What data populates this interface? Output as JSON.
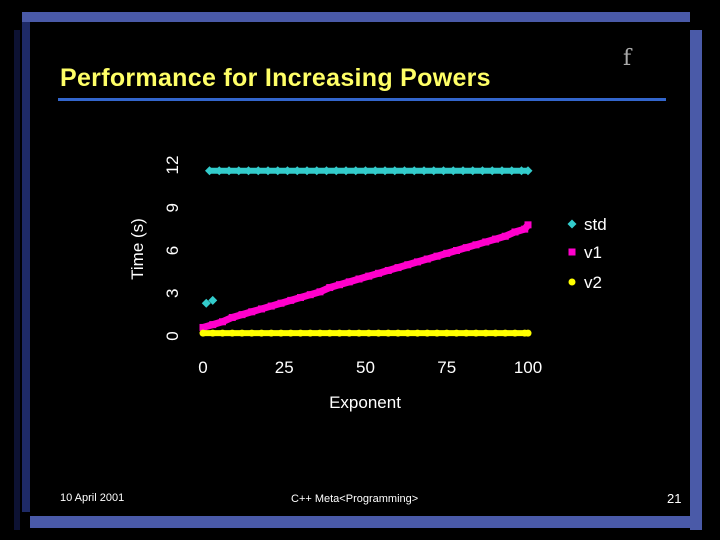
{
  "slide": {
    "title": "Performance for Increasing Powers",
    "glyph": "f",
    "footer_date": "10 April 2001",
    "footer_course": "C++ Meta<Programming>",
    "page_number": "21"
  },
  "theme": {
    "background": "#000000",
    "title_color": "#ffff66",
    "rule_color": "#3366cc",
    "frame_color": "#4a5aa8",
    "frame_shadow": "#1e2a66"
  },
  "chart_data": {
    "type": "scatter",
    "xlabel": "Exponent",
    "ylabel": "Time (s)",
    "xlim": [
      0,
      100
    ],
    "ylim": [
      0,
      12
    ],
    "xticks": [
      "0",
      "25",
      "50",
      "75",
      "100"
    ],
    "yticks": [
      "0",
      "3",
      "6",
      "9",
      "12"
    ],
    "grid": false,
    "legend_position": "right",
    "series": [
      {
        "name": "std",
        "color": "#33cccc",
        "marker": "diamond",
        "points": [
          [
            1,
            2.3
          ],
          [
            3,
            2.5
          ],
          [
            2,
            11.6
          ],
          [
            5,
            11.6
          ],
          [
            8,
            11.6
          ],
          [
            11,
            11.6
          ],
          [
            14,
            11.6
          ],
          [
            17,
            11.6
          ],
          [
            20,
            11.6
          ],
          [
            23,
            11.6
          ],
          [
            26,
            11.6
          ],
          [
            29,
            11.6
          ],
          [
            32,
            11.6
          ],
          [
            35,
            11.6
          ],
          [
            38,
            11.6
          ],
          [
            41,
            11.6
          ],
          [
            44,
            11.6
          ],
          [
            47,
            11.6
          ],
          [
            50,
            11.6
          ],
          [
            53,
            11.6
          ],
          [
            56,
            11.6
          ],
          [
            59,
            11.6
          ],
          [
            62,
            11.6
          ],
          [
            65,
            11.6
          ],
          [
            68,
            11.6
          ],
          [
            71,
            11.6
          ],
          [
            74,
            11.6
          ],
          [
            77,
            11.6
          ],
          [
            80,
            11.6
          ],
          [
            83,
            11.6
          ],
          [
            86,
            11.6
          ],
          [
            89,
            11.6
          ],
          [
            92,
            11.6
          ],
          [
            95,
            11.6
          ],
          [
            98,
            11.6
          ],
          [
            100,
            11.6
          ]
        ]
      },
      {
        "name": "v1",
        "color": "#ff00cc",
        "marker": "square",
        "points": [
          [
            0,
            0.6
          ],
          [
            3,
            0.8
          ],
          [
            6,
            1.0
          ],
          [
            9,
            1.3
          ],
          [
            12,
            1.5
          ],
          [
            15,
            1.7
          ],
          [
            18,
            1.9
          ],
          [
            21,
            2.1
          ],
          [
            24,
            2.3
          ],
          [
            27,
            2.5
          ],
          [
            30,
            2.7
          ],
          [
            33,
            2.9
          ],
          [
            36,
            3.1
          ],
          [
            39,
            3.4
          ],
          [
            42,
            3.6
          ],
          [
            45,
            3.8
          ],
          [
            48,
            4.0
          ],
          [
            51,
            4.2
          ],
          [
            54,
            4.4
          ],
          [
            57,
            4.6
          ],
          [
            60,
            4.8
          ],
          [
            63,
            5.0
          ],
          [
            66,
            5.2
          ],
          [
            69,
            5.4
          ],
          [
            72,
            5.6
          ],
          [
            75,
            5.8
          ],
          [
            78,
            6.0
          ],
          [
            81,
            6.2
          ],
          [
            84,
            6.4
          ],
          [
            87,
            6.6
          ],
          [
            90,
            6.8
          ],
          [
            93,
            7.0
          ],
          [
            96,
            7.3
          ],
          [
            99,
            7.5
          ],
          [
            100,
            7.8
          ]
        ]
      },
      {
        "name": "v2",
        "color": "#ffff00",
        "marker": "circle",
        "points": [
          [
            0,
            0.2
          ],
          [
            3,
            0.2
          ],
          [
            6,
            0.2
          ],
          [
            9,
            0.2
          ],
          [
            12,
            0.2
          ],
          [
            15,
            0.2
          ],
          [
            18,
            0.2
          ],
          [
            21,
            0.2
          ],
          [
            24,
            0.2
          ],
          [
            27,
            0.2
          ],
          [
            30,
            0.2
          ],
          [
            33,
            0.2
          ],
          [
            36,
            0.2
          ],
          [
            39,
            0.2
          ],
          [
            42,
            0.2
          ],
          [
            45,
            0.2
          ],
          [
            48,
            0.2
          ],
          [
            51,
            0.2
          ],
          [
            54,
            0.2
          ],
          [
            57,
            0.2
          ],
          [
            60,
            0.2
          ],
          [
            63,
            0.2
          ],
          [
            66,
            0.2
          ],
          [
            69,
            0.2
          ],
          [
            72,
            0.2
          ],
          [
            75,
            0.2
          ],
          [
            78,
            0.2
          ],
          [
            81,
            0.2
          ],
          [
            84,
            0.2
          ],
          [
            87,
            0.2
          ],
          [
            90,
            0.2
          ],
          [
            93,
            0.2
          ],
          [
            96,
            0.2
          ],
          [
            99,
            0.2
          ],
          [
            100,
            0.2
          ]
        ]
      }
    ]
  }
}
